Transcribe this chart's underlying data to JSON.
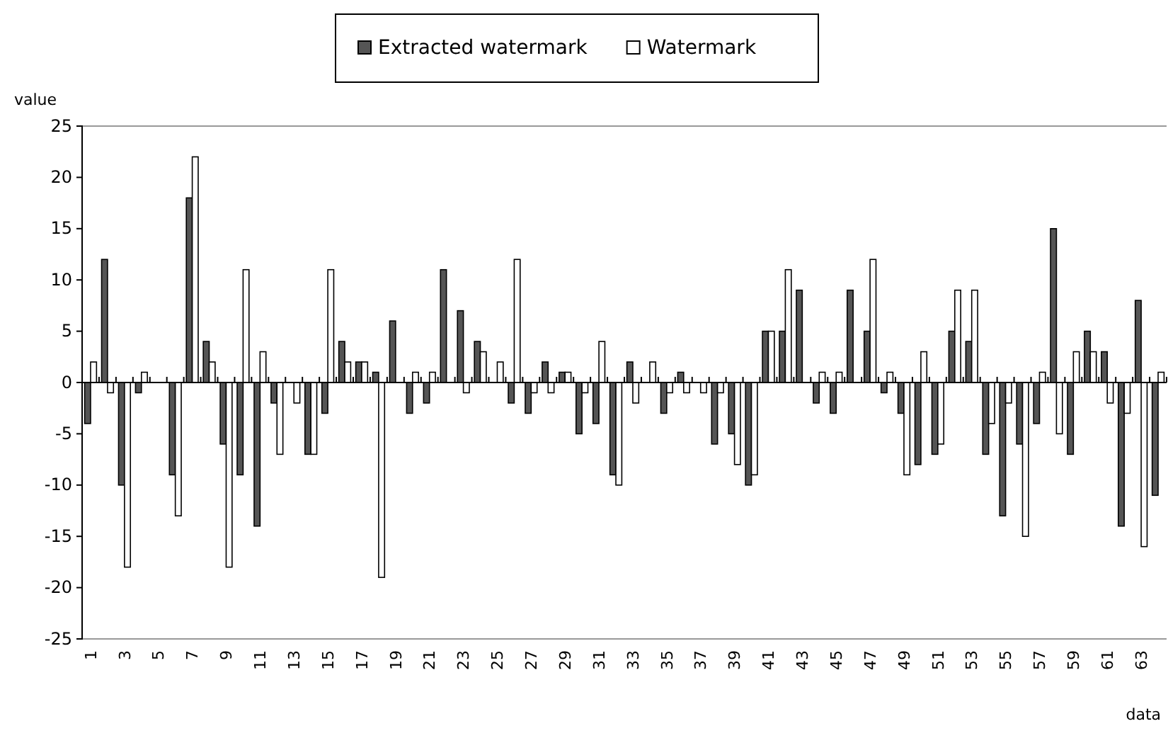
{
  "chart_data": {
    "type": "bar",
    "xlabel": "data",
    "ylabel": "value",
    "categories": [
      "1",
      null,
      "3",
      null,
      "5",
      null,
      "7",
      null,
      "9",
      null,
      "11",
      null,
      "13",
      null,
      "15",
      null,
      "17",
      null,
      "19",
      null,
      "21",
      null,
      "23",
      null,
      "25",
      null,
      "27",
      null,
      "29",
      null,
      "31",
      null,
      "33",
      null,
      "35",
      null,
      "37",
      null,
      "39",
      null,
      "41",
      null,
      "43",
      null,
      "45",
      null,
      "47",
      null,
      "49",
      null,
      "51",
      null,
      "53",
      null,
      "55",
      null,
      "57",
      null,
      "59",
      null,
      "61",
      null,
      "63",
      null
    ],
    "series": [
      {
        "name": "Extracted watermark",
        "color": "#555555",
        "values": [
          -4,
          12,
          -10,
          -1,
          0,
          -9,
          18,
          4,
          -6,
          -9,
          -14,
          -2,
          0,
          -7,
          -3,
          4,
          2,
          1,
          6,
          -3,
          -2,
          11,
          7,
          4,
          0,
          -2,
          -3,
          2,
          1,
          -5,
          -4,
          -9,
          2,
          0,
          -3,
          1,
          0,
          -6,
          -5,
          -10,
          5,
          5,
          9,
          -2,
          -3,
          9,
          5,
          -1,
          -3,
          -8,
          -7,
          5,
          4,
          -7,
          -13,
          -6,
          -4,
          15,
          -7,
          5,
          3,
          -14,
          8,
          -11
        ]
      },
      {
        "name": "Watermark",
        "color": "#ffffff",
        "values": [
          2,
          -1,
          -18,
          1,
          0,
          -13,
          22,
          2,
          -18,
          11,
          3,
          -7,
          -2,
          -7,
          11,
          2,
          2,
          -19,
          0,
          1,
          1,
          0,
          -1,
          3,
          2,
          12,
          -1,
          -1,
          1,
          -1,
          4,
          -10,
          -2,
          2,
          -1,
          -1,
          -1,
          -1,
          -8,
          -9,
          5,
          11,
          0,
          1,
          1,
          0,
          12,
          1,
          -9,
          3,
          -6,
          9,
          9,
          -4,
          -2,
          -15,
          1,
          -5,
          3,
          3,
          -2,
          -3,
          -16,
          1
        ]
      }
    ],
    "ylim": [
      -25,
      25
    ],
    "yticks": [
      -25,
      -20,
      -15,
      -10,
      -5,
      0,
      5,
      10,
      15,
      20,
      25
    ],
    "legend": "top"
  }
}
